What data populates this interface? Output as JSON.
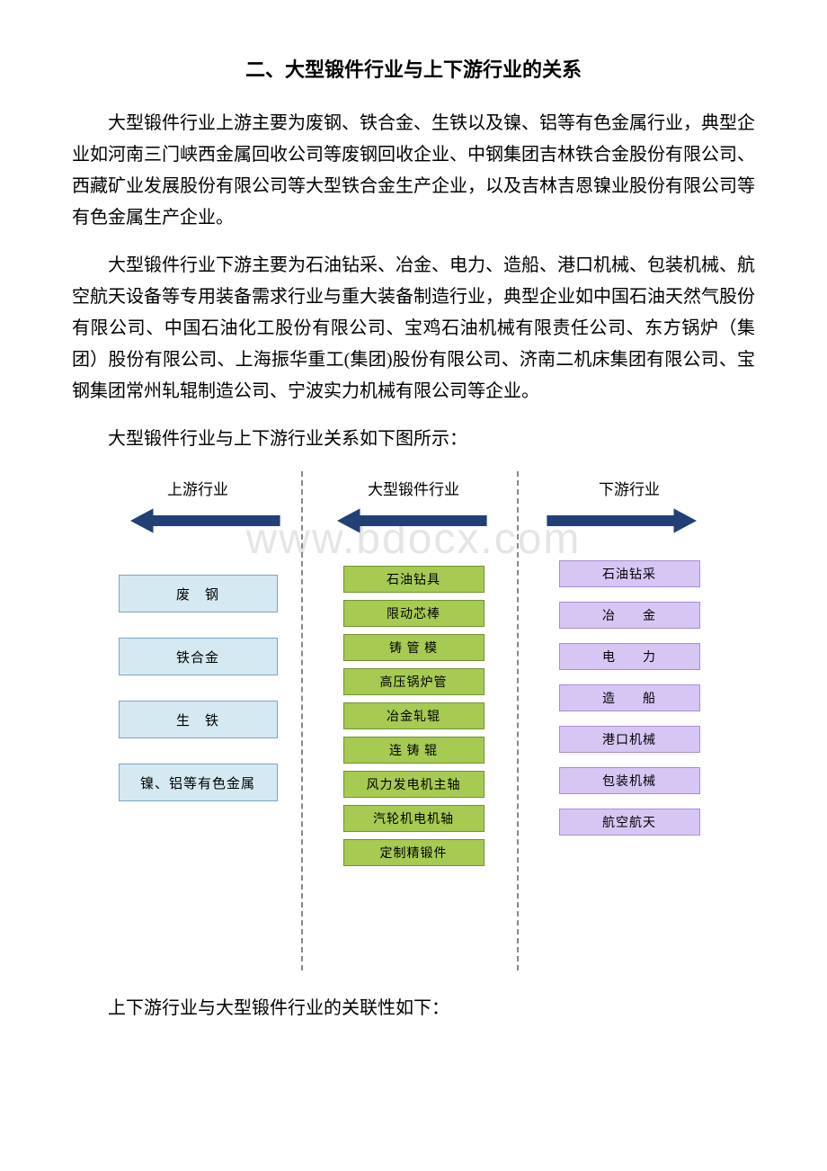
{
  "title": "二、大型锻件行业与上下游行业的关系",
  "paragraphs": {
    "p1": "大型锻件行业上游主要为废钢、铁合金、生铁以及镍、铝等有色金属行业，典型企业如河南三门峡西金属回收公司等废钢回收企业、中钢集团吉林铁合金股份有限公司、西藏矿业发展股份有限公司等大型铁合金生产企业，以及吉林吉恩镍业股份有限公司等有色金属生产企业。",
    "p2": "大型锻件行业下游主要为石油钻采、冶金、电力、造船、港口机械、包装机械、航空航天设备等专用装备需求行业与重大装备制造行业，典型企业如中国石油天然气股份有限公司、中国石油化工股份有限公司、宝鸡石油机械有限责任公司、东方锅炉（集团）股份有限公司、上海振华重工(集团)股份有限公司、济南二机床集团有限公司、宝钢集团常州轧辊制造公司、宁波实力机械有限公司等企业。",
    "p3": "大型锻件行业与上下游行业关系如下图所示：",
    "p4": "上下游行业与大型锻件行业的关联性如下："
  },
  "diagram": {
    "watermark": "www.bdocx.com",
    "columns": {
      "upstream": {
        "header": "上游行业",
        "arrow_direction": "left",
        "box_style": {
          "bg": "#d4e9f1",
          "border": "#7aa6c2"
        },
        "gap": 28,
        "items": [
          "废　钢",
          "铁合金",
          "生　铁",
          "镍、铝等有色金属"
        ]
      },
      "industry": {
        "header": "大型锻件行业",
        "arrow_direction": "left",
        "box_style": {
          "bg": "#a6ca52",
          "border": "#70932d"
        },
        "gap": 8,
        "items": [
          "石油钻具",
          "限动芯棒",
          "铸 管 模",
          "高压锅炉管",
          "冶金轧辊",
          "连 铸 辊",
          "风力发电机主轴",
          "汽轮机电机轴",
          "定制精锻件"
        ]
      },
      "downstream": {
        "header": "下游行业",
        "arrow_direction": "right",
        "box_style": {
          "bg": "#d7c6f4",
          "border": "#a68dd4"
        },
        "gap": 16,
        "items": [
          "石油钻采",
          "冶　　金",
          "电　　力",
          "造　　船",
          "港口机械",
          "包装机械",
          "航空航天"
        ]
      }
    },
    "arrow_color": "#1e3a70",
    "divider_color": "#888888"
  }
}
